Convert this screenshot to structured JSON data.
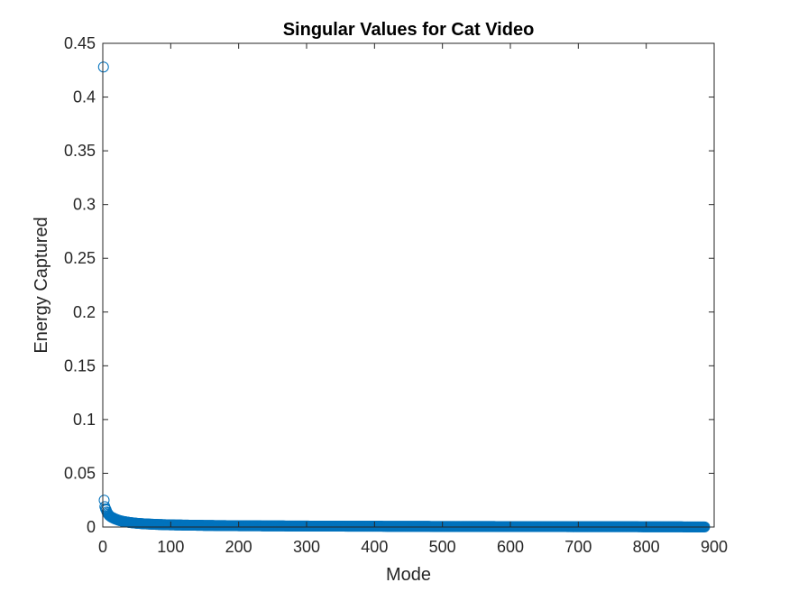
{
  "chart_data": {
    "type": "scatter",
    "title": "Singular Values for Cat Video",
    "xlabel": "Mode",
    "ylabel": "Energy Captured",
    "xlim": [
      0,
      900
    ],
    "ylim": [
      0,
      0.45
    ],
    "xticks": [
      "0",
      "100",
      "200",
      "300",
      "400",
      "500",
      "600",
      "700",
      "800",
      "900"
    ],
    "yticks": [
      "0",
      "0.05",
      "0.1",
      "0.15",
      "0.2",
      "0.25",
      "0.3",
      "0.35",
      "0.4",
      "0.45"
    ],
    "grid": false,
    "marker": "circle-open",
    "color": "#0072BD",
    "series": [
      {
        "points": [
          [
            1,
            0.428
          ],
          [
            2,
            0.025
          ],
          [
            3,
            0.019
          ],
          [
            4,
            0.017
          ],
          [
            5,
            0.016
          ],
          [
            6,
            0.014
          ],
          [
            7,
            0.013
          ],
          [
            8,
            0.012
          ],
          [
            9,
            0.011
          ],
          [
            10,
            0.0105
          ],
          [
            12,
            0.0095
          ],
          [
            14,
            0.0088
          ],
          [
            16,
            0.0082
          ],
          [
            18,
            0.0076
          ],
          [
            20,
            0.0071
          ],
          [
            25,
            0.006
          ],
          [
            30,
            0.0052
          ],
          [
            40,
            0.0042
          ],
          [
            50,
            0.0035
          ],
          [
            60,
            0.003
          ],
          [
            80,
            0.0024
          ],
          [
            100,
            0.002
          ],
          [
            150,
            0.0015
          ],
          [
            200,
            0.0012
          ],
          [
            300,
            0.0009
          ],
          [
            400,
            0.0007
          ],
          [
            500,
            0.00055
          ],
          [
            600,
            0.00045
          ],
          [
            700,
            0.00035
          ],
          [
            800,
            0.00025
          ],
          [
            886,
            0.0001
          ]
        ]
      }
    ]
  }
}
